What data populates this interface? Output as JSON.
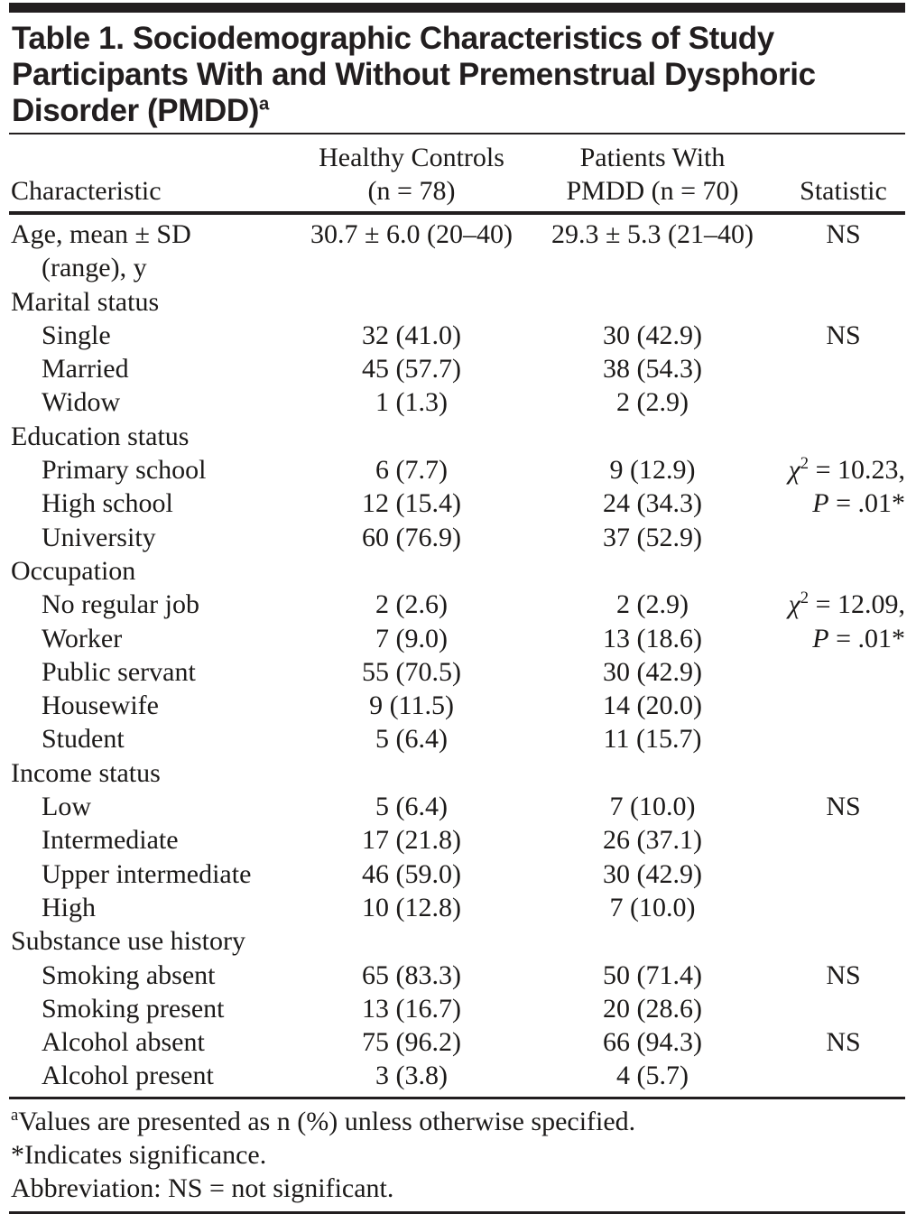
{
  "title": {
    "lines": [
      "Table 1. Sociodemographic Characteristics of Study",
      "Participants With and Without Premenstrual Dysphoric",
      "Disorder (PMDD)"
    ],
    "sup": "a"
  },
  "header": {
    "characteristic": "Characteristic",
    "col2_line1": "Healthy Controls",
    "col2_line2": "(n = 78)",
    "col3_line1": "Patients With",
    "col3_line2": "PMDD (n = 70)",
    "statistic": "Statistic"
  },
  "rows": [
    {
      "label": "Age, mean ± SD",
      "label2": "(range), y",
      "c2": "30.7 ± 6.0 (20–40)",
      "c3": "29.3 ± 5.3 (21–40)",
      "stat": "NS"
    },
    {
      "label": "Marital status"
    },
    {
      "label": "Single",
      "c2": "32 (41.0)",
      "c3": "30 (42.9)",
      "stat": "NS"
    },
    {
      "label": "Married",
      "c2": "45 (57.7)",
      "c3": "38 (54.3)"
    },
    {
      "label": "Widow",
      "c2": "1 (1.3)",
      "c3": "2 (2.9)"
    },
    {
      "label": "Education status"
    },
    {
      "label": "Primary school",
      "c2": "6 (7.7)",
      "c3": "9 (12.9)",
      "stat_chi": "χ",
      "stat_sup": "2",
      "stat_rest": " = 10.23,"
    },
    {
      "label": "High school",
      "c2": "12 (15.4)",
      "c3": "24 (34.3)",
      "stat_p": "P",
      "stat_rest": " = .01*"
    },
    {
      "label": "University",
      "c2": "60 (76.9)",
      "c3": "37 (52.9)"
    },
    {
      "label": "Occupation"
    },
    {
      "label": "No regular job",
      "c2": "2 (2.6)",
      "c3": "2 (2.9)",
      "stat_chi": "χ",
      "stat_sup": "2",
      "stat_rest": " = 12.09,"
    },
    {
      "label": "Worker",
      "c2": "7 (9.0)",
      "c3": "13 (18.6)",
      "stat_p": "P",
      "stat_rest": " = .01*"
    },
    {
      "label": "Public servant",
      "c2": "55 (70.5)",
      "c3": "30 (42.9)"
    },
    {
      "label": "Housewife",
      "c2": "9 (11.5)",
      "c3": "14 (20.0)"
    },
    {
      "label": "Student",
      "c2": "5 (6.4)",
      "c3": "11 (15.7)"
    },
    {
      "label": "Income status"
    },
    {
      "label": "Low",
      "c2": "5 (6.4)",
      "c3": "7 (10.0)",
      "stat": "NS"
    },
    {
      "label": "Intermediate",
      "c2": "17 (21.8)",
      "c3": "26 (37.1)"
    },
    {
      "label": "Upper intermediate",
      "c2": "46 (59.0)",
      "c3": "30 (42.9)"
    },
    {
      "label": "High",
      "c2": "10 (12.8)",
      "c3": "7 (10.0)"
    },
    {
      "label": "Substance use history"
    },
    {
      "label": "Smoking absent",
      "c2": "65 (83.3)",
      "c3": "50 (71.4)",
      "stat": "NS"
    },
    {
      "label": "Smoking present",
      "c2": "13 (16.7)",
      "c3": "20 (28.6)"
    },
    {
      "label": "Alcohol absent",
      "c2": "75 (96.2)",
      "c3": "66 (94.3)",
      "stat": "NS"
    },
    {
      "label": "Alcohol present",
      "c2": "3 (3.8)",
      "c3": "4 (5.7)"
    }
  ],
  "footnotes": {
    "f1_sup": "a",
    "f1": "Values are presented as n (%) unless otherwise specified.",
    "f2": "*Indicates significance.",
    "f3": "Abbreviation: NS = not significant."
  }
}
